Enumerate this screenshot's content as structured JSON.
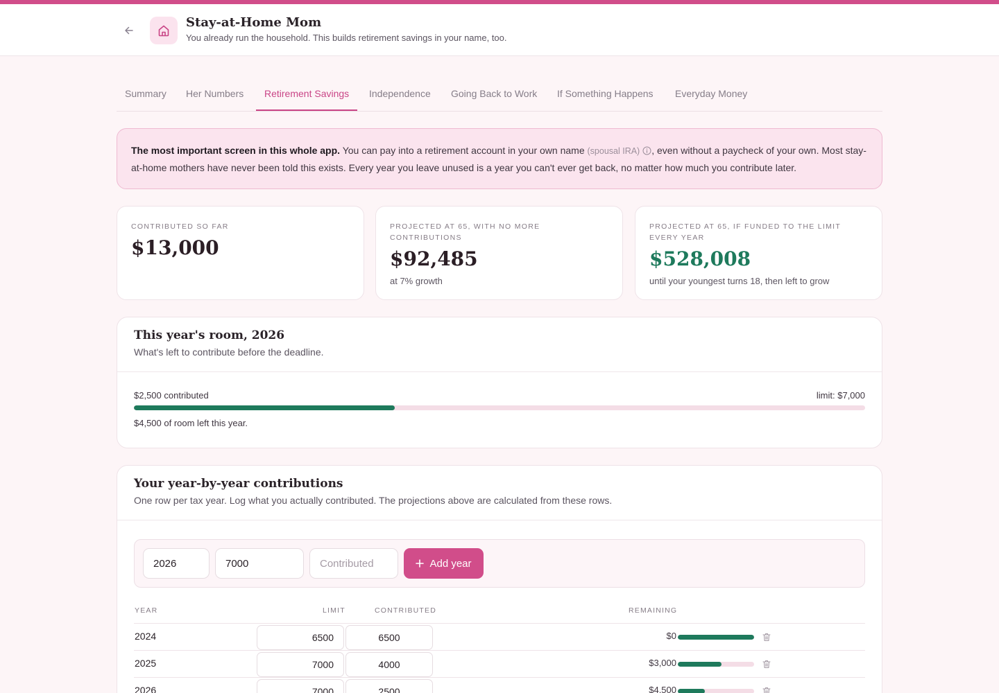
{
  "header": {
    "title": "Stay-at-Home Mom",
    "subtitle": "You already run the household. This builds retirement savings in your name, too."
  },
  "tabs": [
    {
      "label": "Summary"
    },
    {
      "label": "Her Numbers"
    },
    {
      "label": "Retirement Savings",
      "active": true
    },
    {
      "label": "Independence"
    },
    {
      "label": "Going Back to Work"
    },
    {
      "label": "If Something Happens"
    },
    {
      "label": "Everyday Money"
    }
  ],
  "callout": {
    "bold": "The most important screen in this whole app.",
    "text_before": "You can pay into a retirement account in your own name",
    "term": "(spousal IRA)",
    "text_after": ", even without a paycheck of your own. Most stay-at-home mothers have never been told this exists. Every year you leave unused is a year you can't ever get back, no matter how much you contribute later."
  },
  "stats": [
    {
      "label": "Contributed so far",
      "value": "$13,000",
      "note": ""
    },
    {
      "label": "Projected at 65, with no more contributions",
      "value": "$92,485",
      "note": "at 7% growth"
    },
    {
      "label": "Projected at 65, if funded to the limit every year",
      "value": "$528,008",
      "note": "until your youngest turns 18, then left to grow"
    }
  ],
  "room": {
    "title": "This year's room, 2026",
    "subtitle": "What's left to contribute before the deadline.",
    "contributed_text": "$2,500 contributed",
    "limit_text": "limit: $7,000",
    "left_text": "$4,500 of room left this year.",
    "contributed": 2500,
    "limit": 7000
  },
  "contributions": {
    "title": "Your year-by-year contributions",
    "subtitle": "One row per tax year. Log what you actually contributed. The projections above are calculated from these rows.",
    "form": {
      "year_value": "2026",
      "limit_value": "7000",
      "contributed_placeholder": "Contributed",
      "add_label": "Add year"
    },
    "columns": {
      "year": "YEAR",
      "limit": "LIMIT",
      "contributed": "CONTRIBUTED",
      "remaining": "REMAINING"
    },
    "rows": [
      {
        "year": "2024",
        "limit": "6500",
        "contributed": "6500",
        "remaining": "$0",
        "filled": 1.0
      },
      {
        "year": "2025",
        "limit": "7000",
        "contributed": "4000",
        "remaining": "$3,000",
        "filled": 0.571
      },
      {
        "year": "2026",
        "limit": "7000",
        "contributed": "2500",
        "remaining": "$4,500",
        "filled": 0.357
      }
    ]
  },
  "colors": {
    "accent": "#d14d8a",
    "green": "#1e7a5c",
    "track": "#f4dde6"
  }
}
